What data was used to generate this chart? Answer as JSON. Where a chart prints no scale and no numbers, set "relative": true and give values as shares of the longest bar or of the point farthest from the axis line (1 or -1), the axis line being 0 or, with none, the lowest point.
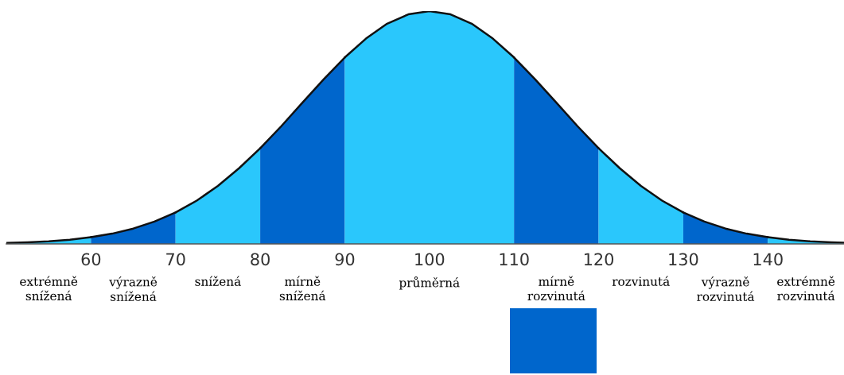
{
  "chart_data": {
    "type": "area",
    "relative": true,
    "series": [
      {
        "color": "#2ac7fc",
        "x": [
          50,
          52.5,
          55,
          57.5,
          60
        ],
        "values": [
          0.004,
          0.007,
          0.011,
          0.018,
          0.029
        ]
      },
      {
        "color": "#0066cc",
        "x": [
          60,
          62.5,
          65,
          67.5,
          70
        ],
        "values": [
          0.029,
          0.044,
          0.066,
          0.096,
          0.135
        ]
      },
      {
        "color": "#2ac7fc",
        "x": [
          70,
          72.5,
          75,
          77.5,
          80
        ],
        "values": [
          0.135,
          0.186,
          0.249,
          0.325,
          0.411
        ]
      },
      {
        "color": "#0066cc",
        "x": [
          80,
          82.5,
          85,
          87.5,
          90
        ],
        "values": [
          0.411,
          0.506,
          0.607,
          0.707,
          0.801
        ]
      },
      {
        "color": "#2ac7fc",
        "x": [
          90,
          92.5,
          95,
          97.5,
          100,
          102.5,
          105,
          107.5,
          110
        ],
        "values": [
          0.801,
          0.882,
          0.946,
          0.986,
          1.0,
          0.986,
          0.946,
          0.882,
          0.801
        ]
      },
      {
        "color": "#0066cc",
        "x": [
          110,
          112.5,
          115,
          117.5,
          120
        ],
        "values": [
          0.801,
          0.707,
          0.607,
          0.506,
          0.411
        ]
      },
      {
        "color": "#2ac7fc",
        "x": [
          120,
          122.5,
          125,
          127.5,
          130
        ],
        "values": [
          0.411,
          0.325,
          0.249,
          0.186,
          0.135
        ]
      },
      {
        "color": "#0066cc",
        "x": [
          130,
          132.5,
          135,
          137.5,
          140
        ],
        "values": [
          0.135,
          0.096,
          0.066,
          0.044,
          0.029
        ]
      },
      {
        "color": "#2ac7fc",
        "x": [
          140,
          142.5,
          145,
          147.5,
          149
        ],
        "values": [
          0.029,
          0.018,
          0.011,
          0.007,
          0.005
        ]
      }
    ],
    "xlim": [
      50,
      149
    ],
    "xticks": [
      60,
      70,
      80,
      90,
      100,
      110,
      120,
      130,
      140
    ],
    "tick_labels": "x",
    "annotations": [
      "extrémně\nsnížená",
      "výrazně\nsnížená",
      "snížená",
      "mírně\nsnížená",
      "průměrná",
      "mírně\nrozvinutá",
      "rozvinutá",
      "výrazně\nrozvinutá",
      "extrémně\nrozvinutá"
    ]
  }
}
